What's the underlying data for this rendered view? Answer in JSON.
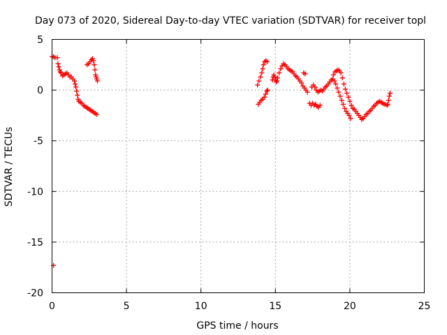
{
  "chart_data": {
    "type": "scatter",
    "title": "Day 073 of 2020, Sidereal Day-to-day VTEC variation (SDTVAR) for receiver topl",
    "xlabel": "GPS time / hours",
    "ylabel": "SDTVAR / TECUs",
    "xlim": [
      0,
      25
    ],
    "ylim": [
      -20,
      5
    ],
    "xticks": [
      0,
      5,
      10,
      15,
      20,
      25
    ],
    "yticks": [
      5,
      0,
      -5,
      -10,
      -15,
      -20
    ],
    "xtick_labels": [
      "0",
      "5",
      "10",
      "15",
      "20",
      "25"
    ],
    "ytick_labels": [
      "5",
      "0",
      "-5",
      "-10",
      "-15",
      "-20"
    ],
    "grid": true,
    "marker": "+",
    "series": [
      {
        "name": "SDTVAR",
        "color": "#ff0000",
        "segments": [
          [
            [
              0.0,
              3.3
            ],
            [
              0.1,
              3.3
            ],
            [
              0.2,
              3.2
            ]
          ],
          [
            [
              0.35,
              3.2
            ],
            [
              0.4,
              2.6
            ],
            [
              0.45,
              2.3
            ],
            [
              0.5,
              2.0
            ],
            [
              0.55,
              1.8
            ],
            [
              0.6,
              1.7
            ],
            [
              0.7,
              1.4
            ],
            [
              0.8,
              1.5
            ],
            [
              0.9,
              1.6
            ],
            [
              1.0,
              1.7
            ],
            [
              1.1,
              1.5
            ],
            [
              1.2,
              1.3
            ],
            [
              1.3,
              1.3
            ],
            [
              1.4,
              1.1
            ],
            [
              1.5,
              0.9
            ],
            [
              1.55,
              0.6
            ],
            [
              1.6,
              0.3
            ],
            [
              1.65,
              -0.1
            ],
            [
              1.7,
              -0.5
            ],
            [
              1.75,
              -0.9
            ],
            [
              1.8,
              -1.1
            ],
            [
              1.9,
              -1.2
            ],
            [
              2.0,
              -1.3
            ],
            [
              2.1,
              -1.5
            ],
            [
              2.2,
              -1.6
            ],
            [
              2.3,
              -1.7
            ],
            [
              2.4,
              -1.8
            ],
            [
              2.5,
              -1.9
            ],
            [
              2.6,
              -2.0
            ],
            [
              2.7,
              -2.1
            ],
            [
              2.8,
              -2.2
            ],
            [
              2.9,
              -2.3
            ],
            [
              3.0,
              -2.4
            ]
          ],
          [
            [
              2.35,
              2.5
            ],
            [
              2.45,
              2.6
            ],
            [
              2.55,
              2.8
            ],
            [
              2.65,
              3.0
            ],
            [
              2.72,
              3.1
            ],
            [
              2.78,
              2.9
            ],
            [
              2.83,
              2.5
            ],
            [
              2.88,
              2.0
            ],
            [
              2.92,
              1.5
            ],
            [
              2.96,
              1.3
            ],
            [
              3.0,
              1.1
            ],
            [
              3.05,
              0.9
            ]
          ],
          [
            [
              0.1,
              -17.3
            ]
          ],
          [
            [
              13.85,
              -1.4
            ],
            [
              13.95,
              -1.2
            ],
            [
              14.05,
              -1.0
            ],
            [
              14.15,
              -0.9
            ],
            [
              14.25,
              -0.7
            ],
            [
              14.35,
              -0.4
            ],
            [
              14.42,
              -0.1
            ],
            [
              14.48,
              0.0
            ]
          ],
          [
            [
              13.8,
              0.5
            ],
            [
              13.9,
              0.9
            ],
            [
              14.0,
              1.3
            ],
            [
              14.08,
              1.7
            ],
            [
              14.15,
              2.1
            ],
            [
              14.2,
              2.5
            ],
            [
              14.28,
              2.8
            ],
            [
              14.36,
              2.9
            ],
            [
              14.45,
              2.8
            ]
          ],
          [
            [
              14.8,
              1.0
            ],
            [
              14.85,
              1.3
            ],
            [
              14.9,
              1.5
            ],
            [
              14.95,
              1.3
            ],
            [
              15.0,
              1.0
            ],
            [
              15.05,
              0.8
            ],
            [
              15.1,
              0.9
            ],
            [
              15.15,
              1.2
            ],
            [
              15.25,
              1.7
            ],
            [
              15.35,
              2.1
            ],
            [
              15.45,
              2.4
            ],
            [
              15.55,
              2.6
            ],
            [
              15.65,
              2.5
            ],
            [
              15.75,
              2.3
            ],
            [
              15.85,
              2.1
            ],
            [
              15.95,
              2.0
            ],
            [
              16.05,
              1.9
            ],
            [
              16.15,
              1.8
            ],
            [
              16.25,
              1.6
            ],
            [
              16.35,
              1.4
            ],
            [
              16.45,
              1.3
            ],
            [
              16.55,
              1.1
            ],
            [
              16.65,
              0.9
            ],
            [
              16.75,
              0.7
            ],
            [
              16.85,
              0.4
            ],
            [
              16.95,
              0.2
            ],
            [
              17.05,
              0.0
            ],
            [
              17.15,
              -0.2
            ]
          ],
          [
            [
              16.9,
              1.7
            ],
            [
              17.0,
              1.6
            ]
          ],
          [
            [
              17.3,
              -1.3
            ],
            [
              17.4,
              -1.5
            ],
            [
              17.5,
              -1.3
            ],
            [
              17.6,
              -1.5
            ],
            [
              17.7,
              -1.4
            ],
            [
              17.8,
              -1.6
            ],
            [
              17.9,
              -1.7
            ],
            [
              18.0,
              -1.5
            ]
          ],
          [
            [
              17.45,
              0.3
            ],
            [
              17.55,
              0.5
            ],
            [
              17.65,
              0.3
            ],
            [
              17.75,
              0.0
            ],
            [
              17.85,
              -0.2
            ],
            [
              17.95,
              -0.1
            ],
            [
              18.05,
              0.0
            ],
            [
              18.15,
              -0.1
            ],
            [
              18.25,
              0.1
            ],
            [
              18.35,
              0.3
            ],
            [
              18.45,
              0.4
            ],
            [
              18.55,
              0.6
            ],
            [
              18.65,
              0.8
            ],
            [
              18.75,
              1.0
            ],
            [
              18.85,
              1.1
            ],
            [
              18.95,
              0.9
            ],
            [
              19.05,
              0.6
            ],
            [
              19.15,
              0.2
            ],
            [
              19.25,
              -0.2
            ],
            [
              19.35,
              -0.6
            ],
            [
              19.45,
              -1.0
            ],
            [
              19.55,
              -1.4
            ],
            [
              19.65,
              -1.8
            ],
            [
              19.75,
              -2.1
            ],
            [
              19.85,
              -2.3
            ],
            [
              19.95,
              -2.5
            ],
            [
              20.05,
              -2.8
            ]
          ],
          [
            [
              18.9,
              1.5
            ],
            [
              19.0,
              1.8
            ],
            [
              19.1,
              1.9
            ],
            [
              19.2,
              2.0
            ],
            [
              19.3,
              1.9
            ],
            [
              19.4,
              1.7
            ],
            [
              19.5,
              1.2
            ],
            [
              19.6,
              0.6
            ],
            [
              19.7,
              0.1
            ],
            [
              19.8,
              -0.3
            ],
            [
              19.9,
              -0.7
            ],
            [
              20.0,
              -1.1
            ],
            [
              20.1,
              -1.5
            ],
            [
              20.2,
              -1.8
            ],
            [
              20.3,
              -1.9
            ],
            [
              20.4,
              -2.1
            ],
            [
              20.5,
              -2.3
            ],
            [
              20.6,
              -2.5
            ],
            [
              20.7,
              -2.7
            ],
            [
              20.8,
              -2.9
            ],
            [
              20.9,
              -2.8
            ],
            [
              21.0,
              -2.6
            ],
            [
              21.1,
              -2.4
            ],
            [
              21.2,
              -2.3
            ],
            [
              21.3,
              -2.1
            ],
            [
              21.4,
              -2.0
            ],
            [
              21.5,
              -1.8
            ],
            [
              21.6,
              -1.6
            ],
            [
              21.7,
              -1.5
            ],
            [
              21.8,
              -1.3
            ],
            [
              21.9,
              -1.2
            ],
            [
              22.0,
              -1.1
            ],
            [
              22.1,
              -1.2
            ],
            [
              22.2,
              -1.3
            ],
            [
              22.3,
              -1.4
            ],
            [
              22.4,
              -1.4
            ],
            [
              22.5,
              -1.5
            ],
            [
              22.55,
              -1.4
            ],
            [
              22.6,
              -1.0
            ],
            [
              22.65,
              -0.6
            ],
            [
              22.7,
              -0.3
            ]
          ]
        ]
      }
    ]
  }
}
